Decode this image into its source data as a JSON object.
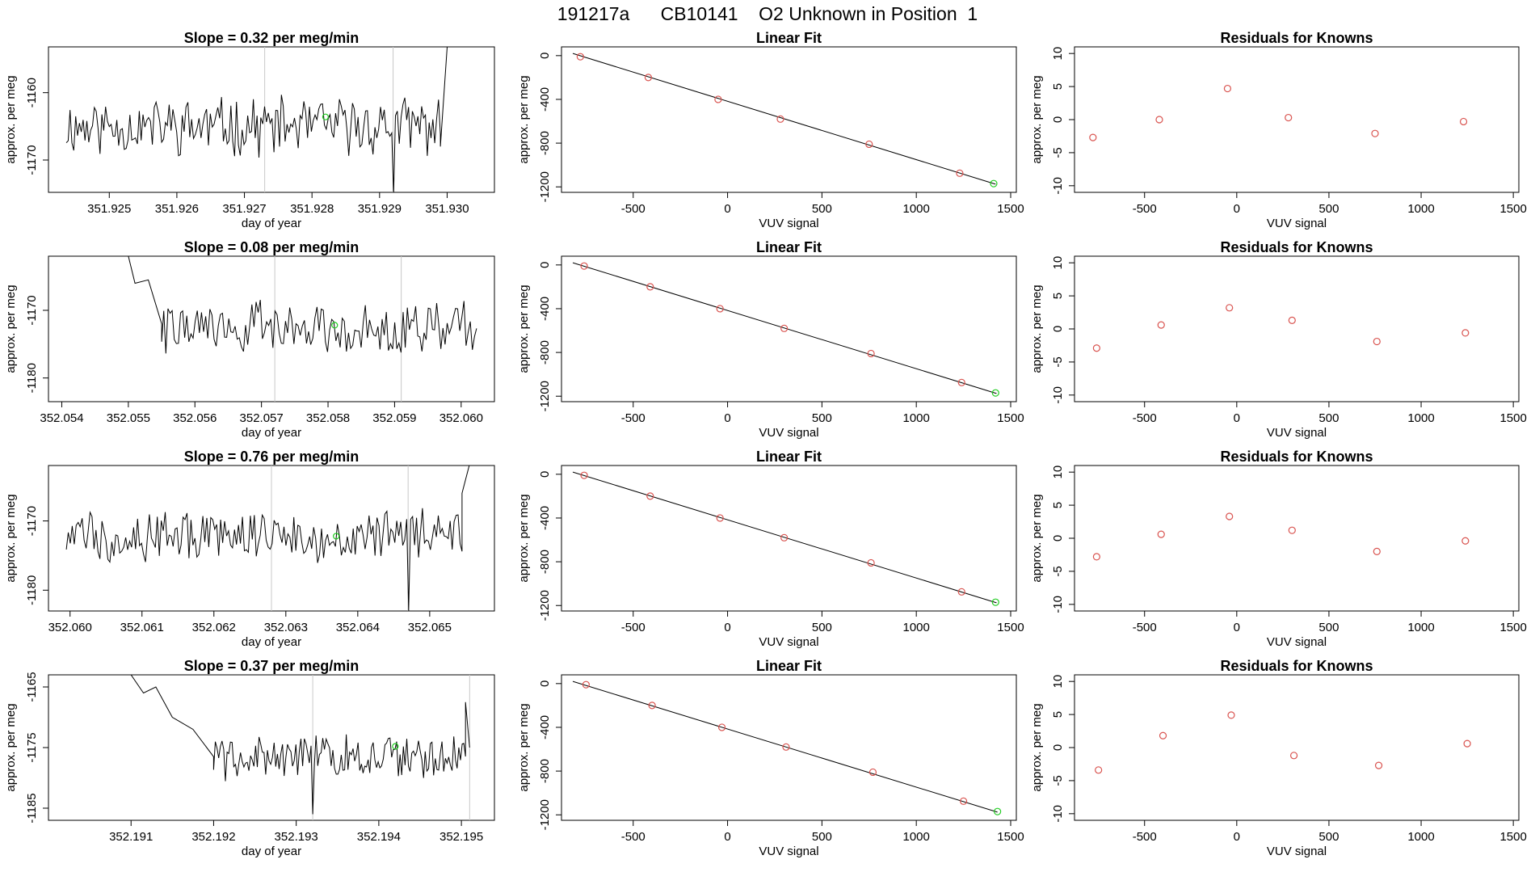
{
  "figure_title": "191217a      CB10141    O2 Unknown in Position  1",
  "colors": {
    "line": "#000000",
    "known_point": "#d9534f",
    "unknown_point": "#22cc22",
    "marker_line": "#c8c8c8"
  },
  "chart_data": [
    {
      "row": 1,
      "timeseries": {
        "type": "line",
        "title": "Slope =  0.32  per meg/min",
        "xlabel": "day of year",
        "ylabel": "approx. per meg",
        "xlim": [
          351.9241,
          351.9307
        ],
        "ylim": [
          -1174.8,
          -1153.2
        ],
        "xticks": [
          351.925,
          351.926,
          351.927,
          351.928,
          351.929,
          351.93
        ],
        "xtick_labels": [
          "351.925",
          "351.926",
          "351.927",
          "351.928",
          "351.929",
          "351.930"
        ],
        "yticks": [
          -1170,
          -1160
        ],
        "ytick_labels": [
          "-1170",
          "-1160"
        ],
        "vlines": [
          351.9273,
          351.9292
        ],
        "marker": {
          "x": 351.9282,
          "y": -1163.6
        },
        "n_points": 200,
        "noise": {
          "seed": 11,
          "mean": -1165.0,
          "amp": 3.6
        },
        "start_artifact": null,
        "dip": {
          "x": 351.9292,
          "y": -1175
        },
        "end_artifact": [
          [
            351.9299,
            -1168
          ],
          [
            351.93,
            -1153.2
          ]
        ]
      },
      "fit": {
        "type": "scatter",
        "title": "Linear Fit",
        "xlabel": "VUV signal",
        "ylabel": "approx. per meg",
        "xlim": [
          -880,
          1530
        ],
        "ylim": [
          -1250,
          80
        ],
        "xticks": [
          -500,
          0,
          500,
          1000,
          1500
        ],
        "xtick_labels": [
          "-500",
          "0",
          "500",
          "1000",
          "1500"
        ],
        "yticks": [
          0,
          -400,
          -800,
          -1200
        ],
        "ytick_labels": [
          "0",
          "-400",
          "-800",
          "-1200"
        ],
        "points": [
          [
            -780,
            -10
          ],
          [
            -420,
            -200
          ],
          [
            -50,
            -400
          ],
          [
            280,
            -580
          ],
          [
            750,
            -810
          ],
          [
            1230,
            -1075
          ]
        ],
        "unknown": [
          1410,
          -1170
        ],
        "line": [
          [
            -820,
            20
          ],
          [
            1420,
            -1175
          ]
        ]
      },
      "residuals": {
        "type": "scatter",
        "title": "Residuals for Knowns",
        "xlabel": "VUV signal",
        "ylabel": "approx. per meg",
        "xlim": [
          -880,
          1530
        ],
        "ylim": [
          -11,
          11
        ],
        "xticks": [
          -500,
          0,
          500,
          1000,
          1500
        ],
        "xtick_labels": [
          "-500",
          "0",
          "500",
          "1000",
          "1500"
        ],
        "yticks": [
          -10,
          -5,
          0,
          5,
          10
        ],
        "ytick_labels": [
          "-10",
          "-5",
          "0",
          "5",
          "10"
        ],
        "points": [
          [
            -780,
            -2.7
          ],
          [
            -420,
            0.0
          ],
          [
            -50,
            4.7
          ],
          [
            280,
            0.3
          ],
          [
            750,
            -2.1
          ],
          [
            1230,
            -0.3
          ]
        ]
      }
    },
    {
      "row": 2,
      "timeseries": {
        "type": "line",
        "title": "Slope =  0.08  per meg/min",
        "xlabel": "day of year",
        "ylabel": "approx. per meg",
        "xlim": [
          352.0538,
          352.0605
        ],
        "ylim": [
          -1183.5,
          -1162
        ],
        "xticks": [
          352.054,
          352.055,
          352.056,
          352.057,
          352.058,
          352.059,
          352.06
        ],
        "xtick_labels": [
          "352.054",
          "352.055",
          "352.056",
          "352.057",
          "352.058",
          "352.059",
          "352.060"
        ],
        "yticks": [
          -1180,
          -1170
        ],
        "ytick_labels": [
          "-1180",
          "-1170"
        ],
        "vlines": [
          352.0572,
          352.0591
        ],
        "marker": {
          "x": 352.0581,
          "y": -1172.2
        },
        "n_points": 150,
        "noise": {
          "seed": 22,
          "mean": -1172.5,
          "amp": 3.2
        },
        "start_artifact": [
          [
            352.055,
            -1162
          ],
          [
            352.0551,
            -1166
          ],
          [
            352.0553,
            -1165.5
          ],
          [
            352.0555,
            -1172
          ]
        ],
        "dip": null,
        "end_artifact": null
      },
      "fit": {
        "type": "scatter",
        "title": "Linear Fit",
        "xlabel": "VUV signal",
        "ylabel": "approx. per meg",
        "xlim": [
          -880,
          1530
        ],
        "ylim": [
          -1250,
          80
        ],
        "xticks": [
          -500,
          0,
          500,
          1000,
          1500
        ],
        "xtick_labels": [
          "-500",
          "0",
          "500",
          "1000",
          "1500"
        ],
        "yticks": [
          0,
          -400,
          -800,
          -1200
        ],
        "ytick_labels": [
          "0",
          "-400",
          "-800",
          "-1200"
        ],
        "points": [
          [
            -760,
            -10
          ],
          [
            -410,
            -200
          ],
          [
            -40,
            -400
          ],
          [
            300,
            -580
          ],
          [
            760,
            -810
          ],
          [
            1240,
            -1075
          ]
        ],
        "unknown": [
          1420,
          -1170
        ],
        "line": [
          [
            -820,
            20
          ],
          [
            1425,
            -1175
          ]
        ]
      },
      "residuals": {
        "type": "scatter",
        "title": "Residuals for Knowns",
        "xlabel": "VUV signal",
        "ylabel": "approx. per meg",
        "xlim": [
          -880,
          1530
        ],
        "ylim": [
          -11,
          11
        ],
        "xticks": [
          -500,
          0,
          500,
          1000,
          1500
        ],
        "xtick_labels": [
          "-500",
          "0",
          "500",
          "1000",
          "1500"
        ],
        "yticks": [
          -10,
          -5,
          0,
          5,
          10
        ],
        "ytick_labels": [
          "-10",
          "-5",
          "0",
          "5",
          "10"
        ],
        "points": [
          [
            -760,
            -2.9
          ],
          [
            -410,
            0.6
          ],
          [
            -40,
            3.2
          ],
          [
            300,
            1.3
          ],
          [
            760,
            -1.9
          ],
          [
            1240,
            -0.6
          ]
        ]
      }
    },
    {
      "row": 3,
      "timeseries": {
        "type": "line",
        "title": "Slope =  0.76  per meg/min",
        "xlabel": "day of year",
        "ylabel": "approx. per meg",
        "xlim": [
          352.0597,
          352.0659
        ],
        "ylim": [
          -1183,
          -1162
        ],
        "xticks": [
          352.06,
          352.061,
          352.062,
          352.063,
          352.064,
          352.065
        ],
        "xtick_labels": [
          "352.060",
          "352.061",
          "352.062",
          "352.063",
          "352.064",
          "352.065"
        ],
        "yticks": [
          -1180,
          -1170
        ],
        "ytick_labels": [
          "-1180",
          "-1170"
        ],
        "vlines": [
          352.0628,
          352.0647
        ],
        "marker": {
          "x": 352.0637,
          "y": -1172.2
        },
        "n_points": 200,
        "noise": {
          "seed": 33,
          "mean": -1172.0,
          "amp": 3.2
        },
        "start_artifact": null,
        "dip": {
          "x": 352.0647,
          "y": -1183
        },
        "end_artifact": [
          [
            352.06545,
            -1166
          ],
          [
            352.06555,
            -1162
          ]
        ]
      },
      "fit": {
        "type": "scatter",
        "title": "Linear Fit",
        "xlabel": "VUV signal",
        "ylabel": "approx. per meg",
        "xlim": [
          -880,
          1530
        ],
        "ylim": [
          -1250,
          80
        ],
        "xticks": [
          -500,
          0,
          500,
          1000,
          1500
        ],
        "xtick_labels": [
          "-500",
          "0",
          "500",
          "1000",
          "1500"
        ],
        "yticks": [
          0,
          -400,
          -800,
          -1200
        ],
        "ytick_labels": [
          "0",
          "-400",
          "-800",
          "-1200"
        ],
        "points": [
          [
            -760,
            -10
          ],
          [
            -410,
            -200
          ],
          [
            -40,
            -400
          ],
          [
            300,
            -580
          ],
          [
            760,
            -810
          ],
          [
            1240,
            -1075
          ]
        ],
        "unknown": [
          1420,
          -1170
        ],
        "line": [
          [
            -820,
            20
          ],
          [
            1425,
            -1175
          ]
        ]
      },
      "residuals": {
        "type": "scatter",
        "title": "Residuals for Knowns",
        "xlabel": "VUV signal",
        "ylabel": "approx. per meg",
        "xlim": [
          -880,
          1530
        ],
        "ylim": [
          -11,
          11
        ],
        "xticks": [
          -500,
          0,
          500,
          1000,
          1500
        ],
        "xtick_labels": [
          "-500",
          "0",
          "500",
          "1000",
          "1500"
        ],
        "yticks": [
          -10,
          -5,
          0,
          5,
          10
        ],
        "ytick_labels": [
          "-10",
          "-5",
          "0",
          "5",
          "10"
        ],
        "points": [
          [
            -760,
            -2.8
          ],
          [
            -410,
            0.6
          ],
          [
            -40,
            3.3
          ],
          [
            300,
            1.2
          ],
          [
            760,
            -2.0
          ],
          [
            1240,
            -0.4
          ]
        ]
      }
    },
    {
      "row": 4,
      "timeseries": {
        "type": "line",
        "title": "Slope =  0.37  per meg/min",
        "xlabel": "day of year",
        "ylabel": "approx. per meg",
        "xlim": [
          352.19,
          352.1954
        ],
        "ylim": [
          -1187,
          -1163
        ],
        "xticks": [
          352.191,
          352.192,
          352.193,
          352.194,
          352.195
        ],
        "xtick_labels": [
          "352.191",
          "352.192",
          "352.193",
          "352.194",
          "352.195"
        ],
        "yticks": [
          -1185,
          -1175,
          -1165
        ],
        "ytick_labels": [
          "-1185",
          "-1175",
          "-1165"
        ],
        "vlines": [
          352.1932,
          352.1951
        ],
        "marker": {
          "x": 352.1942,
          "y": -1174.8
        },
        "n_points": 150,
        "noise": {
          "seed": 44,
          "mean": -1176.5,
          "amp": 3.3
        },
        "start_artifact": [
          [
            352.191,
            -1163
          ],
          [
            352.19115,
            -1166
          ],
          [
            352.1913,
            -1165
          ],
          [
            352.1915,
            -1170
          ],
          [
            352.19175,
            -1172
          ],
          [
            352.192,
            -1176.5
          ]
        ],
        "dip": {
          "x": 352.1932,
          "y": -1186
        },
        "end_artifact": [
          [
            352.19505,
            -1167.5
          ],
          [
            352.1951,
            -1175
          ]
        ]
      },
      "fit": {
        "type": "scatter",
        "title": "Linear Fit",
        "xlabel": "VUV signal",
        "ylabel": "approx. per meg",
        "xlim": [
          -880,
          1530
        ],
        "ylim": [
          -1250,
          80
        ],
        "xticks": [
          -500,
          0,
          500,
          1000,
          1500
        ],
        "xtick_labels": [
          "-500",
          "0",
          "500",
          "1000",
          "1500"
        ],
        "yticks": [
          0,
          -400,
          -800,
          -1200
        ],
        "ytick_labels": [
          "0",
          "-400",
          "-800",
          "-1200"
        ],
        "points": [
          [
            -750,
            -10
          ],
          [
            -400,
            -200
          ],
          [
            -30,
            -400
          ],
          [
            310,
            -580
          ],
          [
            770,
            -810
          ],
          [
            1250,
            -1075
          ]
        ],
        "unknown": [
          1430,
          -1170
        ],
        "line": [
          [
            -820,
            20
          ],
          [
            1430,
            -1175
          ]
        ]
      },
      "residuals": {
        "type": "scatter",
        "title": "Residuals for Knowns",
        "xlabel": "VUV signal",
        "ylabel": "approx. per meg",
        "xlim": [
          -880,
          1530
        ],
        "ylim": [
          -11,
          11
        ],
        "xticks": [
          -500,
          0,
          500,
          1000,
          1500
        ],
        "xtick_labels": [
          "-500",
          "0",
          "500",
          "1000",
          "1500"
        ],
        "yticks": [
          -10,
          -5,
          0,
          5,
          10
        ],
        "ytick_labels": [
          "-10",
          "-5",
          "0",
          "5",
          "10"
        ],
        "points": [
          [
            -750,
            -3.4
          ],
          [
            -400,
            1.8
          ],
          [
            -30,
            4.9
          ],
          [
            310,
            -1.2
          ],
          [
            770,
            -2.7
          ],
          [
            1250,
            0.6
          ]
        ]
      }
    }
  ]
}
